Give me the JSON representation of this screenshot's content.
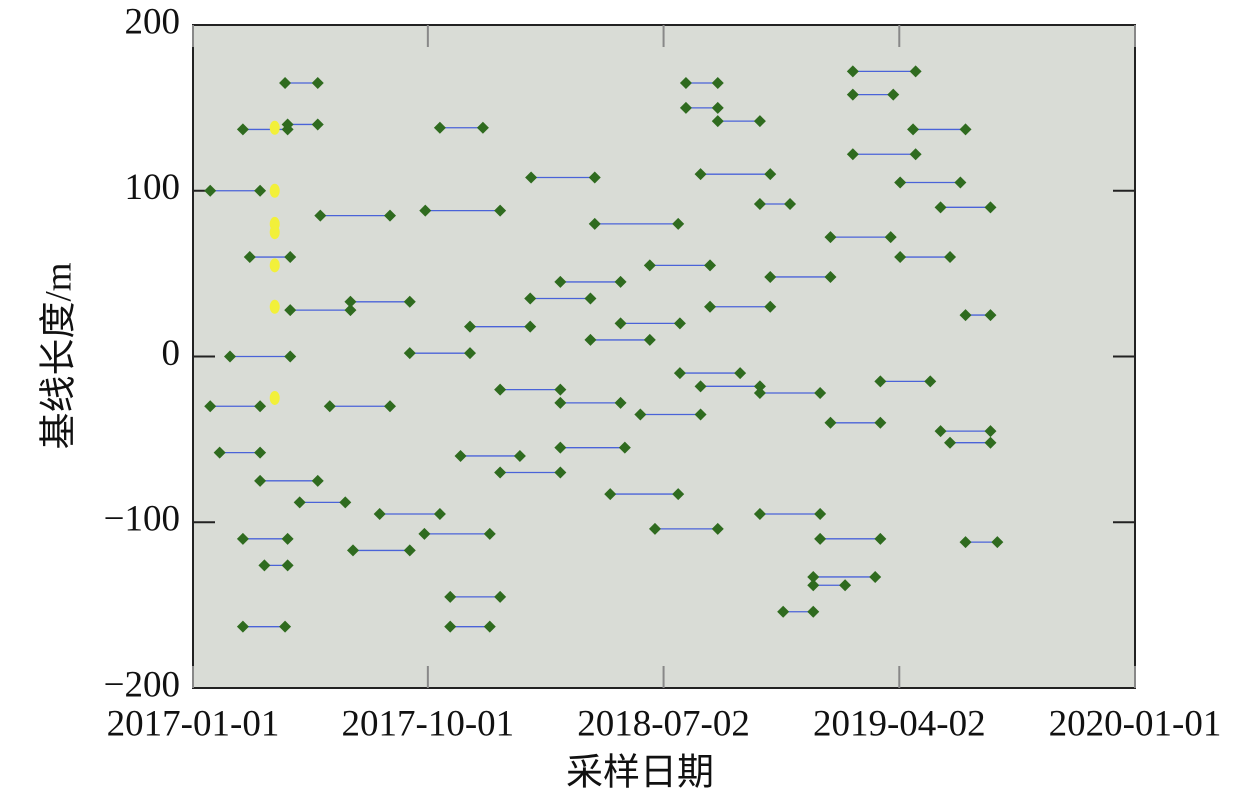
{
  "chart_data": {
    "type": "interval",
    "x_label": "采样日期",
    "y_label": "基线长度/m",
    "xlim": [
      "2017-01-01",
      "2020-01-01"
    ],
    "xticks": [
      "2017-01-01",
      "2017-10-01",
      "2018-07-02",
      "2019-04-02",
      "2020-01-01"
    ],
    "ylim": [
      -200,
      200
    ],
    "yticks": [
      200,
      100,
      0,
      {
        "value": -100,
        "label": "−100"
      },
      {
        "value": -200,
        "label": "−200"
      }
    ],
    "background": "#d9dcd6",
    "segments": {
      "marker_color": "#2f6b1f",
      "line_color": "#4a63d8",
      "x_start": [
        "2017-02-28",
        "2017-04-18",
        "2017-02-28",
        "2017-03-25",
        "2017-02-28",
        "2017-10-15",
        "2017-10-27",
        "2017-10-27",
        "2017-09-27",
        "2018-06-22",
        "2018-07-28",
        "2018-07-28",
        "2018-09-03",
        "2019-02-07",
        "2019-02-07",
        "2018-11-18",
        "2018-12-23",
        "2018-12-23",
        "2019-04-18",
        "2019-06-18",
        "2018-01-29",
        "2017-01-21",
        "2017-04-21",
        "2017-07-06",
        "2018-04-13",
        "2018-05-01",
        "2019-02-07",
        "2018-10-22",
        "2017-09-28",
        "2017-02-01",
        "2017-03-20",
        "2017-05-05",
        "2017-08-06",
        "2017-12-24",
        "2018-03-04",
        "2018-06-05",
        "2018-08-14",
        "2018-10-22",
        "2019-01-12",
        "2019-05-31",
        "2019-05-20",
        "2017-02-13",
        "2017-04-24",
        "2017-07-03",
        "2017-09-10",
        "2017-11-19",
        "2018-01-28",
        "2018-04-08",
        "2018-06-16",
        "2018-08-25",
        "2018-11-03",
        "2019-01-12",
        "2019-04-03",
        "2019-06-18",
        "2017-05-29",
        "2018-03-04",
        "2018-08-14",
        "2019-04-03",
        "2017-03-08",
        "2017-11-08",
        "2018-03-04",
        "2018-07-21",
        "2018-10-22",
        "2018-12-31",
        "2017-06-09",
        "2017-12-24",
        "2018-05-13",
        "2019-03-11",
        "2017-01-21",
        "2019-05-20"
      ],
      "x_end": [
        "2017-04-21",
        "2017-05-26",
        "2017-04-18",
        "2017-04-21",
        "2017-04-21",
        "2017-12-04",
        "2017-12-24",
        "2017-12-12",
        "2017-12-12",
        "2018-09-03",
        "2018-09-03",
        "2018-09-03",
        "2018-10-22",
        "2019-04-21",
        "2019-03-26",
        "2018-12-23",
        "2019-03-05",
        "2019-01-29",
        "2019-06-18",
        "2019-07-25",
        "2018-04-13",
        "2017-03-20",
        "2017-05-26",
        "2017-09-10",
        "2018-07-19",
        "2018-07-19",
        "2019-04-21",
        "2018-11-26",
        "2017-12-24",
        "2017-03-20",
        "2017-05-26",
        "2017-06-27",
        "2017-10-15",
        "2018-03-04",
        "2018-05-18",
        "2018-08-14",
        "2018-10-22",
        "2018-12-31",
        "2019-03-11",
        "2019-07-17",
        "2019-07-17",
        "2017-04-24",
        "2017-07-03",
        "2017-09-10",
        "2017-11-19",
        "2018-01-28",
        "2018-04-08",
        "2018-06-16",
        "2018-08-25",
        "2018-11-03",
        "2019-01-12",
        "2019-03-23",
        "2019-05-31",
        "2019-07-17",
        "2017-08-18",
        "2018-05-13",
        "2018-11-03",
        "2019-06-12",
        "2017-04-24",
        "2018-01-16",
        "2018-05-13",
        "2018-09-29",
        "2018-12-31",
        "2019-03-11",
        "2017-08-18",
        "2018-03-04",
        "2018-07-21",
        "2019-05-08",
        "2017-03-20",
        "2019-07-17"
      ],
      "values": [
        137,
        165,
        -163,
        -126,
        -110,
        138,
        -145,
        -163,
        -107,
        -104,
        165,
        150,
        142,
        172,
        158,
        -154,
        -133,
        -138,
        137,
        -112,
        108,
        100,
        140,
        -117,
        80,
        -83,
        122,
        92,
        88,
        -58,
        -75,
        -88,
        -95,
        -70,
        -55,
        -35,
        -18,
        -22,
        -40,
        -52,
        -45,
        0,
        28,
        33,
        2,
        18,
        35,
        10,
        55,
        30,
        48,
        72,
        60,
        25,
        85,
        45,
        110,
        105,
        60,
        -60,
        -28,
        -10,
        -95,
        -110,
        -30,
        -20,
        20,
        -15,
        -30,
        90
      ]
    },
    "points": {
      "color": "#f2f03a",
      "x": [
        "2017-04-06",
        "2017-04-06",
        "2017-04-06",
        "2017-04-06",
        "2017-04-06",
        "2017-04-06",
        "2017-04-06"
      ],
      "values": [
        138,
        100,
        80,
        75,
        55,
        30,
        -25
      ]
    }
  }
}
